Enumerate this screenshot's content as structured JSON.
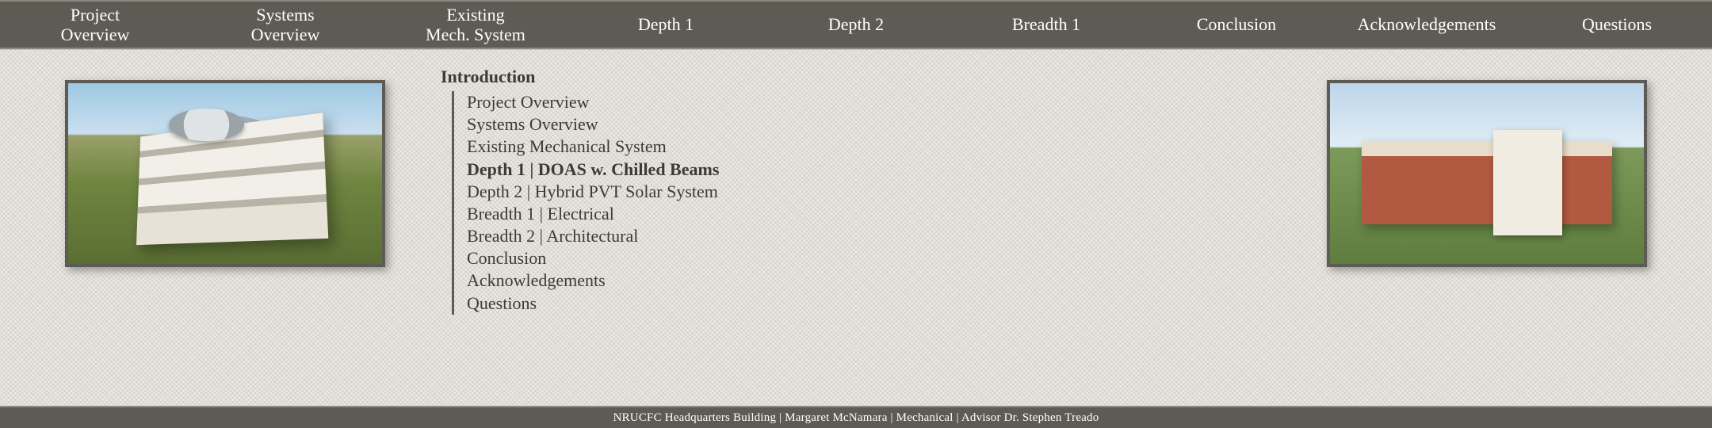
{
  "colors": {
    "nav_bg": "#5d5b54",
    "nav_text": "#ffffff",
    "body_bg": "#dcd9d2",
    "outline_text": "#3c3a35",
    "rule": "#5d5b54"
  },
  "nav": {
    "items": [
      {
        "label": "Project\nOverview"
      },
      {
        "label": "Systems\nOverview"
      },
      {
        "label": "Existing\nMech. System"
      },
      {
        "label": "Depth 1"
      },
      {
        "label": "Depth 2"
      },
      {
        "label": "Breadth 1"
      },
      {
        "label": "Conclusion"
      },
      {
        "label": "Acknowledgements"
      },
      {
        "label": "Questions"
      }
    ]
  },
  "outline": {
    "heading": "Introduction",
    "items": [
      {
        "label": "Project Overview",
        "bold": false
      },
      {
        "label": "Systems Overview",
        "bold": false
      },
      {
        "label": "Existing Mechanical System",
        "bold": false
      },
      {
        "label": "Depth 1 | DOAS w. Chilled Beams",
        "bold": true
      },
      {
        "label": "Depth 2 | Hybrid PVT Solar System",
        "bold": false
      },
      {
        "label": "Breadth 1 |  Electrical",
        "bold": false
      },
      {
        "label": "Breadth 2 |  Architectural",
        "bold": false
      },
      {
        "label": "Conclusion",
        "bold": false
      },
      {
        "label": "Acknowledgements",
        "bold": false
      },
      {
        "label": "Questions",
        "bold": false
      }
    ]
  },
  "footer": {
    "text": "NRUCFC Headquarters Building | Margaret McNamara | Mechanical | Advisor Dr. Stephen Treado"
  },
  "images": {
    "left_alt": "Aerial rendering of modern headquarters building with circular atrium",
    "right_alt": "Rendering of brick collegiate building with white columned portico"
  }
}
